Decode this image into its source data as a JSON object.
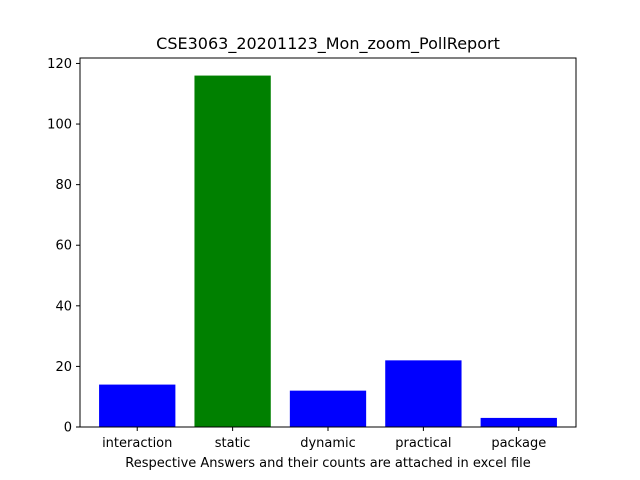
{
  "chart_data": {
    "type": "bar",
    "title": "CSE3063_20201123_Mon_zoom_PollReport",
    "xlabel": "Respective Answers and their counts are attached in excel file",
    "ylabel": "",
    "categories": [
      "interaction",
      "static",
      "dynamic",
      "practical",
      "package"
    ],
    "values": [
      14,
      116,
      12,
      22,
      3
    ],
    "bar_colors": [
      "#0000ff",
      "#008000",
      "#0000ff",
      "#0000ff",
      "#0000ff"
    ],
    "ylim": [
      0,
      121.8
    ],
    "yticks": [
      0,
      20,
      40,
      60,
      80,
      100,
      120
    ],
    "grid": false,
    "legend": "none"
  }
}
